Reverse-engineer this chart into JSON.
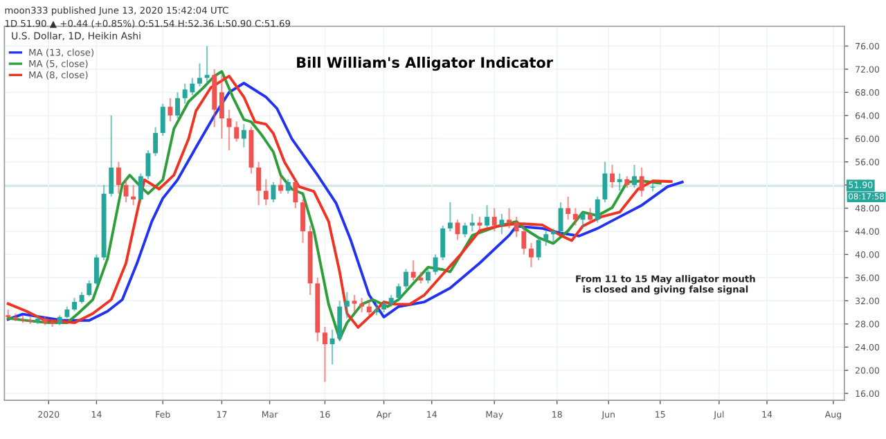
{
  "chart_data": {
    "type": "candlestick",
    "title": "Bill William's Alligator Indicator",
    "annotations": [
      "moon333 published June 13, 2020 15:42:04 UTC",
      "1D 51.90 ▲ +0.44 (+0.85%) O:51.54 H:52.36 L:50.90 C:51.69",
      "U.S. Dollar, 1D, Heikin Ashi",
      "From 11 to 15 May alligator mouth\nis closed and giving false signal",
      "08:17:58"
    ],
    "x": [
      "2019-12-21",
      "2019-12-23",
      "2019-12-25",
      "2019-12-27",
      "2019-12-29",
      "2019-12-31",
      "2020-01-02",
      "2020-01-04",
      "2020-01-06",
      "2020-01-08",
      "2020-01-10",
      "2020-01-12",
      "2020-01-14",
      "2020-01-16",
      "2020-01-18",
      "2020-01-20",
      "2020-01-22",
      "2020-01-24",
      "2020-01-26",
      "2020-01-28",
      "2020-01-30",
      "2020-02-01",
      "2020-02-03",
      "2020-02-05",
      "2020-02-07",
      "2020-02-09",
      "2020-02-11",
      "2020-02-13",
      "2020-02-15",
      "2020-02-17",
      "2020-02-19",
      "2020-02-21",
      "2020-02-23",
      "2020-02-25",
      "2020-02-27",
      "2020-02-29",
      "2020-03-02",
      "2020-03-04",
      "2020-03-06",
      "2020-03-08",
      "2020-03-10",
      "2020-03-12",
      "2020-03-14",
      "2020-03-16",
      "2020-03-18",
      "2020-03-20",
      "2020-03-22",
      "2020-03-24",
      "2020-03-26",
      "2020-03-28",
      "2020-03-30",
      "2020-04-01",
      "2020-04-03",
      "2020-04-05",
      "2020-04-07",
      "2020-04-09",
      "2020-04-11",
      "2020-04-13",
      "2020-04-15",
      "2020-04-17",
      "2020-04-19",
      "2020-04-21",
      "2020-04-23",
      "2020-04-25",
      "2020-04-27",
      "2020-04-29",
      "2020-05-01",
      "2020-05-03",
      "2020-05-05",
      "2020-05-07",
      "2020-05-09",
      "2020-05-11",
      "2020-05-13",
      "2020-05-15",
      "2020-05-17",
      "2020-05-19",
      "2020-05-21",
      "2020-05-23",
      "2020-05-25",
      "2020-05-27",
      "2020-05-29",
      "2020-05-31",
      "2020-06-02",
      "2020-06-04",
      "2020-06-06",
      "2020-06-08",
      "2020-06-10",
      "2020-06-13"
    ],
    "ohlc": [
      [
        29.5,
        30.5,
        28.8,
        29.2
      ],
      [
        29.2,
        29.8,
        28.5,
        28.8
      ],
      [
        28.8,
        29.4,
        28.2,
        28.6
      ],
      [
        28.6,
        29.2,
        28.0,
        28.4
      ],
      [
        28.4,
        29.5,
        28.0,
        28.9
      ],
      [
        28.9,
        29.3,
        27.8,
        28.2
      ],
      [
        28.2,
        28.8,
        27.5,
        28.0
      ],
      [
        28.0,
        29.5,
        27.8,
        29.2
      ],
      [
        29.2,
        31.0,
        29.0,
        30.5
      ],
      [
        30.5,
        32.5,
        30.2,
        31.8
      ],
      [
        31.8,
        33.5,
        31.5,
        33.0
      ],
      [
        33.0,
        35.5,
        32.8,
        35.0
      ],
      [
        35.0,
        40.0,
        34.8,
        39.5
      ],
      [
        39.5,
        52.0,
        39.0,
        50.5
      ],
      [
        50.5,
        64.0,
        50.0,
        55.0
      ],
      [
        55.0,
        56.0,
        50.5,
        52.0
      ],
      [
        52.0,
        53.0,
        49.0,
        50.0
      ],
      [
        50.0,
        52.0,
        48.5,
        49.5
      ],
      [
        49.5,
        54.0,
        49.0,
        53.5
      ],
      [
        53.5,
        58.0,
        53.0,
        57.5
      ],
      [
        57.5,
        62.0,
        57.0,
        61.0
      ],
      [
        61.0,
        66.0,
        60.5,
        65.5
      ],
      [
        65.5,
        67.0,
        63.0,
        64.0
      ],
      [
        64.0,
        68.0,
        63.5,
        67.0
      ],
      [
        67.0,
        69.5,
        66.0,
        68.5
      ],
      [
        68.0,
        70.5,
        67.5,
        69.5
      ],
      [
        69.5,
        73.0,
        69.0,
        70.5
      ],
      [
        70.5,
        76.0,
        69.5,
        71.0
      ],
      [
        71.0,
        72.0,
        62.0,
        65.0
      ],
      [
        68.0,
        71.0,
        60.0,
        63.5
      ],
      [
        63.5,
        65.0,
        58.0,
        62.0
      ],
      [
        62.0,
        63.0,
        59.5,
        60.0
      ],
      [
        60.0,
        62.5,
        58.5,
        61.5
      ],
      [
        61.5,
        62.0,
        54.0,
        55.0
      ],
      [
        55.0,
        56.0,
        48.5,
        51.0
      ],
      [
        51.0,
        53.0,
        48.5,
        49.5
      ],
      [
        49.5,
        52.5,
        49.0,
        52.0
      ],
      [
        52.0,
        53.5,
        50.5,
        51.0
      ],
      [
        51.0,
        53.0,
        50.5,
        52.5
      ],
      [
        52.5,
        53.0,
        48.0,
        49.0
      ],
      [
        49.0,
        49.5,
        42.0,
        44.0
      ],
      [
        44.0,
        45.0,
        33.0,
        35.0
      ],
      [
        35.0,
        36.0,
        25.0,
        26.5
      ],
      [
        26.5,
        27.5,
        18.0,
        24.5
      ],
      [
        24.5,
        27.0,
        21.0,
        25.5
      ],
      [
        25.5,
        32.0,
        25.0,
        31.0
      ],
      [
        31.0,
        33.5,
        29.0,
        32.0
      ],
      [
        32.0,
        33.0,
        30.0,
        31.5
      ],
      [
        31.5,
        32.5,
        30.0,
        31.0
      ],
      [
        31.0,
        32.0,
        29.5,
        30.0
      ],
      [
        30.0,
        31.5,
        29.5,
        30.5
      ],
      [
        30.5,
        32.0,
        30.0,
        31.5
      ],
      [
        31.5,
        33.0,
        31.0,
        32.5
      ],
      [
        32.5,
        35.0,
        32.0,
        34.5
      ],
      [
        34.5,
        37.5,
        34.0,
        37.0
      ],
      [
        37.0,
        39.0,
        35.5,
        36.0
      ],
      [
        36.0,
        37.0,
        35.0,
        35.5
      ],
      [
        35.5,
        37.5,
        35.0,
        37.0
      ],
      [
        37.0,
        40.0,
        36.5,
        39.5
      ],
      [
        39.5,
        45.0,
        39.0,
        44.5
      ],
      [
        44.5,
        49.0,
        44.0,
        45.5
      ],
      [
        45.5,
        46.0,
        42.5,
        43.5
      ],
      [
        43.5,
        45.5,
        43.0,
        45.0
      ],
      [
        45.0,
        47.0,
        44.0,
        45.5
      ],
      [
        45.5,
        46.5,
        44.0,
        45.0
      ],
      [
        45.0,
        48.5,
        44.5,
        46.5
      ],
      [
        46.5,
        48.0,
        44.0,
        45.0
      ],
      [
        45.0,
        47.0,
        43.5,
        46.0
      ],
      [
        46.0,
        48.0,
        44.5,
        45.5
      ],
      [
        45.5,
        46.5,
        43.0,
        44.0
      ],
      [
        44.0,
        45.0,
        40.0,
        41.0
      ],
      [
        41.0,
        42.0,
        37.8,
        39.5
      ],
      [
        39.5,
        43.0,
        39.0,
        42.5
      ],
      [
        42.5,
        44.0,
        41.5,
        43.5
      ],
      [
        43.5,
        44.5,
        42.0,
        44.0
      ],
      [
        44.0,
        49.0,
        43.5,
        48.0
      ],
      [
        48.0,
        50.0,
        46.0,
        47.0
      ],
      [
        47.0,
        48.0,
        45.0,
        46.0
      ],
      [
        46.0,
        47.5,
        44.5,
        47.0
      ],
      [
        47.0,
        48.0,
        45.5,
        46.0
      ],
      [
        46.0,
        50.0,
        45.5,
        49.5
      ],
      [
        49.5,
        56.0,
        49.0,
        54.0
      ],
      [
        54.0,
        55.5,
        51.5,
        52.5
      ],
      [
        52.5,
        54.0,
        51.0,
        53.0
      ],
      [
        53.0,
        53.5,
        51.5,
        52.0
      ],
      [
        52.0,
        55.5,
        51.5,
        53.5
      ],
      [
        53.5,
        55.0,
        50.0,
        51.0
      ],
      [
        51.54,
        52.36,
        50.9,
        51.69
      ]
    ],
    "colors": [
      "#ef5350",
      "#ef5350",
      "#ef5350",
      "#ef5350",
      "#26a69a",
      "#ef5350",
      "#ef5350",
      "#26a69a",
      "#26a69a",
      "#26a69a",
      "#26a69a",
      "#26a69a",
      "#26a69a",
      "#26a69a",
      "#26a69a",
      "#ef5350",
      "#ef5350",
      "#ef5350",
      "#26a69a",
      "#26a69a",
      "#26a69a",
      "#26a69a",
      "#ef5350",
      "#26a69a",
      "#26a69a",
      "#26a69a",
      "#26a69a",
      "#26a69a",
      "#ef5350",
      "#ef5350",
      "#ef5350",
      "#ef5350",
      "#26a69a",
      "#ef5350",
      "#ef5350",
      "#ef5350",
      "#26a69a",
      "#ef5350",
      "#26a69a",
      "#ef5350",
      "#ef5350",
      "#ef5350",
      "#ef5350",
      "#ef5350",
      "#26a69a",
      "#26a69a",
      "#26a69a",
      "#ef5350",
      "#ef5350",
      "#ef5350",
      "#26a69a",
      "#26a69a",
      "#26a69a",
      "#26a69a",
      "#26a69a",
      "#ef5350",
      "#ef5350",
      "#26a69a",
      "#26a69a",
      "#26a69a",
      "#26a69a",
      "#ef5350",
      "#26a69a",
      "#26a69a",
      "#ef5350",
      "#26a69a",
      "#ef5350",
      "#26a69a",
      "#ef5350",
      "#ef5350",
      "#ef5350",
      "#ef5350",
      "#26a69a",
      "#26a69a",
      "#26a69a",
      "#26a69a",
      "#ef5350",
      "#ef5350",
      "#26a69a",
      "#ef5350",
      "#26a69a",
      "#26a69a",
      "#ef5350",
      "#26a69a",
      "#ef5350",
      "#26a69a",
      "#ef5350",
      "#26a69a"
    ],
    "series": [
      {
        "name": "MA (13, close)",
        "type": "line",
        "color": "#2233ee",
        "x": [
          "2019-12-21",
          "2019-12-25",
          "2019-12-30",
          "2020-01-05",
          "2020-01-12",
          "2020-01-17",
          "2020-01-21",
          "2020-01-25",
          "2020-01-29",
          "2020-02-01",
          "2020-02-05",
          "2020-02-10",
          "2020-02-15",
          "2020-02-19",
          "2020-02-23",
          "2020-02-29",
          "2020-03-03",
          "2020-03-07",
          "2020-03-14",
          "2020-03-19",
          "2020-03-23",
          "2020-03-28",
          "2020-04-01",
          "2020-04-05",
          "2020-04-12",
          "2020-04-19",
          "2020-04-27",
          "2020-05-05",
          "2020-05-07",
          "2020-05-14",
          "2020-05-19",
          "2020-05-24",
          "2020-05-29",
          "2020-06-04",
          "2020-06-10",
          "2020-06-17",
          "2020-06-21"
        ],
        "values": [
          28.8,
          29.7,
          29.2,
          28.6,
          28.6,
          30.2,
          32.2,
          38.5,
          45.7,
          49.7,
          52.9,
          58.5,
          64,
          68,
          69.6,
          67.2,
          65.2,
          60,
          53.7,
          48.9,
          42.5,
          33,
          29.2,
          31,
          31.8,
          34.2,
          38.5,
          43.3,
          44.9,
          44.5,
          43.7,
          43.2,
          44.5,
          46.5,
          48.5,
          51.7,
          52.5
        ]
      },
      {
        "name": "MA (5, close)",
        "type": "line",
        "color": "#2e9e3a",
        "x": [
          "2019-12-21",
          "2019-12-26",
          "2020-01-01",
          "2020-01-06",
          "2020-01-09",
          "2020-01-13",
          "2020-01-17",
          "2020-01-21",
          "2020-01-23",
          "2020-01-26",
          "2020-01-28",
          "2020-02-01",
          "2020-02-04",
          "2020-02-08",
          "2020-02-12",
          "2020-02-15",
          "2020-02-17",
          "2020-02-20",
          "2020-02-23",
          "2020-02-25",
          "2020-02-28",
          "2020-03-02",
          "2020-03-04",
          "2020-03-07",
          "2020-03-10",
          "2020-03-13",
          "2020-03-17",
          "2020-03-20",
          "2020-03-22",
          "2020-03-26",
          "2020-03-29",
          "2020-04-02",
          "2020-04-05",
          "2020-04-09",
          "2020-04-13",
          "2020-04-17",
          "2020-04-19",
          "2020-04-22",
          "2020-04-25",
          "2020-05-02",
          "2020-05-07",
          "2020-05-09",
          "2020-05-13",
          "2020-05-17",
          "2020-05-21",
          "2020-05-25",
          "2020-05-29",
          "2020-06-02",
          "2020-06-06",
          "2020-06-10",
          "2020-06-15"
        ],
        "values": [
          29,
          28.6,
          28.2,
          28.2,
          29.8,
          32.2,
          39.3,
          52.1,
          53.7,
          51.7,
          50.5,
          52.9,
          61.7,
          66.4,
          68.8,
          70.8,
          71.6,
          67.2,
          63.3,
          62.9,
          60.5,
          57.7,
          53.7,
          51.3,
          50.5,
          44.1,
          31.4,
          25.4,
          28.2,
          31.4,
          32.2,
          31,
          32.2,
          35,
          37.8,
          37.4,
          37,
          40.1,
          43.3,
          44.9,
          45.7,
          44.5,
          42.9,
          41.9,
          44.1,
          47.3,
          46.7,
          48.1,
          52.5,
          52.7,
          52.3
        ]
      },
      {
        "name": "MA (8, close)",
        "type": "line",
        "color": "#ee3322",
        "x": [
          "2019-12-21",
          "2019-12-26",
          "2019-12-31",
          "2020-01-05",
          "2020-01-08",
          "2020-01-13",
          "2020-01-18",
          "2020-01-22",
          "2020-01-25",
          "2020-01-27",
          "2020-01-31",
          "2020-02-04",
          "2020-02-08",
          "2020-02-10",
          "2020-02-14",
          "2020-02-19",
          "2020-02-23",
          "2020-02-26",
          "2020-02-29",
          "2020-03-02",
          "2020-03-05",
          "2020-03-09",
          "2020-03-13",
          "2020-03-17",
          "2020-03-20",
          "2020-03-22",
          "2020-03-25",
          "2020-03-29",
          "2020-04-01",
          "2020-04-04",
          "2020-04-08",
          "2020-04-12",
          "2020-04-17",
          "2020-04-22",
          "2020-04-27",
          "2020-05-02",
          "2020-05-07",
          "2020-05-09",
          "2020-05-14",
          "2020-05-19",
          "2020-05-22",
          "2020-05-25",
          "2020-05-30",
          "2020-06-04",
          "2020-06-09",
          "2020-06-13",
          "2020-06-18"
        ],
        "values": [
          31.5,
          30.2,
          28.6,
          28.4,
          28.2,
          29.8,
          32.2,
          38.5,
          47.3,
          52.9,
          51.3,
          53.7,
          60,
          64.8,
          68.8,
          70.8,
          67.2,
          62.9,
          62.5,
          60.9,
          56,
          51.7,
          50.9,
          45.7,
          37,
          29.8,
          27.4,
          29.8,
          31.8,
          31.4,
          31.4,
          33,
          36.6,
          40.1,
          44.1,
          44.9,
          45.3,
          45.3,
          45.1,
          43.3,
          42.4,
          44.9,
          46.5,
          47.3,
          51.3,
          52.7,
          52.6
        ]
      }
    ],
    "xlim": [
      "2019-12-20",
      "2020-08-04"
    ],
    "xticks": [
      {
        "value": "2020-01-01",
        "label": "2020"
      },
      {
        "value": "2020-01-14",
        "label": "14"
      },
      {
        "value": "2020-02-01",
        "label": "Feb"
      },
      {
        "value": "2020-02-17",
        "label": "17"
      },
      {
        "value": "2020-03-01",
        "label": "Mar"
      },
      {
        "value": "2020-03-16",
        "label": "16"
      },
      {
        "value": "2020-04-01",
        "label": "Apr"
      },
      {
        "value": "2020-04-14",
        "label": "14"
      },
      {
        "value": "2020-05-01",
        "label": "May"
      },
      {
        "value": "2020-05-18",
        "label": "18"
      },
      {
        "value": "2020-06-01",
        "label": "Jun"
      },
      {
        "value": "2020-06-15",
        "label": "15"
      },
      {
        "value": "2020-07-01",
        "label": "Jul"
      },
      {
        "value": "2020-07-14",
        "label": "14"
      },
      {
        "value": "2020-08-01",
        "label": "Aug"
      }
    ],
    "ylim": [
      14.8,
      79.4
    ],
    "yticks": [
      {
        "value": 16,
        "label": "16.00"
      },
      {
        "value": 20,
        "label": "20.00"
      },
      {
        "value": 24,
        "label": "24.00"
      },
      {
        "value": 28,
        "label": "28.00"
      },
      {
        "value": 32,
        "label": "32.00"
      },
      {
        "value": 36,
        "label": "36.00"
      },
      {
        "value": 40,
        "label": "40.00"
      },
      {
        "value": 44,
        "label": "44.00"
      },
      {
        "value": 48,
        "label": "48.00"
      },
      {
        "value": 52,
        "label": null
      },
      {
        "value": 56,
        "label": "56.00"
      },
      {
        "value": 60,
        "label": "60.00"
      },
      {
        "value": 64,
        "label": "64.00"
      },
      {
        "value": 68,
        "label": "68.00"
      },
      {
        "value": 72,
        "label": "72.00"
      },
      {
        "value": 76,
        "label": "76.00"
      }
    ],
    "ref_lines": [
      {
        "axis": "y",
        "value": 51.9,
        "label": "51.90",
        "color": "#b2dfdb"
      }
    ],
    "grid": true,
    "legend": "top left"
  }
}
